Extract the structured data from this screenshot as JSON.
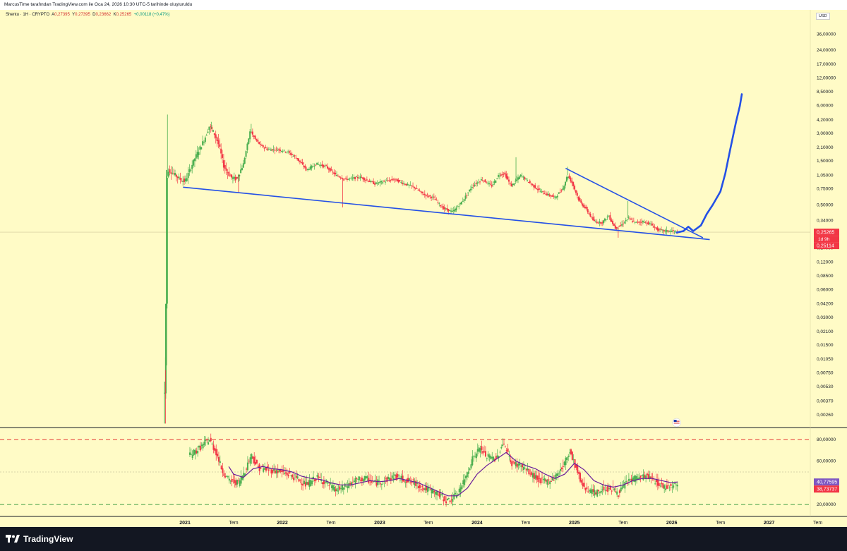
{
  "header": {
    "title": "MarcusTime tarafından TradingView.com ile Oca 24, 2026 10:30 UTC-5 tarihinde oluşturuldu"
  },
  "legend": {
    "symbol": "Shentu · 1H · CRYPTO",
    "open_label": "A",
    "open": "0,27395",
    "high_label": "Y",
    "high": "0,27395",
    "low_label": "D",
    "low": "0,23662",
    "close_label": "K",
    "close": "0,25265",
    "change": "+0,00118 (+0,47%)"
  },
  "currency": "USD",
  "footer": {
    "brand": "TradingView"
  },
  "colors": {
    "background": "#fffbc6",
    "up": "#4caf50",
    "down": "#f23645",
    "trendline": "#2450e6",
    "rsi_line": "#6a1b9a",
    "price_badge": "#f23645",
    "rsi_badge": "#7e57c2",
    "upper_band": "#e53935",
    "lower_band": "#43a047"
  },
  "chart_data": [
    {
      "type": "candlestick",
      "scale": "log",
      "ylim": [
        0.0019,
        48
      ],
      "ytick_labels": [
        "36,00000",
        "24,00000",
        "17,00000",
        "12,00000",
        "8,50000",
        "6,00000",
        "4,20000",
        "3,00000",
        "2,10000",
        "1,50000",
        "1,05000",
        "0,75000",
        "0,50000",
        "0,34000",
        "0,17000",
        "0,12000",
        "0,08500",
        "0,06000",
        "0,04200",
        "0,03000",
        "0,02100",
        "0,01500",
        "0,01050",
        "0,00750",
        "0,00530",
        "0,00370",
        "0,00260"
      ],
      "ytick_values": [
        36,
        24,
        17,
        12,
        8.5,
        6,
        4.2,
        3,
        2.1,
        1.5,
        1.05,
        0.75,
        0.5,
        0.34,
        0.17,
        0.12,
        0.085,
        0.06,
        0.042,
        0.03,
        0.021,
        0.015,
        0.0105,
        0.0075,
        0.0053,
        0.0037,
        0.0026
      ],
      "xtick_labels": [
        "2021",
        "Tem",
        "2022",
        "Tem",
        "2023",
        "Tem",
        "2024",
        "Tem",
        "2025",
        "Tem",
        "2026",
        "Tem",
        "2027",
        "Tem"
      ],
      "xtick_values": [
        2021.0,
        2021.5,
        2022.0,
        2022.5,
        2023.0,
        2023.5,
        2024.0,
        2024.5,
        2025.0,
        2025.5,
        2026.0,
        2026.5,
        2027.0,
        2027.5
      ],
      "xlim": [
        2019.1,
        2027.8
      ],
      "price_path": [
        [
          2020.79,
          0.0045
        ],
        [
          2020.8,
          0.008
        ],
        [
          2020.81,
          0.9
        ],
        [
          2020.83,
          1.2
        ],
        [
          2020.88,
          1.1
        ],
        [
          2020.95,
          0.95
        ],
        [
          2021.0,
          0.9
        ],
        [
          2021.1,
          1.6
        ],
        [
          2021.2,
          2.6
        ],
        [
          2021.25,
          3.6
        ],
        [
          2021.3,
          3.0
        ],
        [
          2021.35,
          2.2
        ],
        [
          2021.4,
          1.3
        ],
        [
          2021.47,
          1.0
        ],
        [
          2021.53,
          0.95
        ],
        [
          2021.6,
          1.4
        ],
        [
          2021.67,
          3.2
        ],
        [
          2021.72,
          2.6
        ],
        [
          2021.78,
          2.2
        ],
        [
          2021.85,
          2.0
        ],
        [
          2021.95,
          2.0
        ],
        [
          2022.05,
          1.9
        ],
        [
          2022.15,
          1.6
        ],
        [
          2022.25,
          1.2
        ],
        [
          2022.35,
          1.4
        ],
        [
          2022.45,
          1.3
        ],
        [
          2022.55,
          1.05
        ],
        [
          2022.65,
          0.95
        ],
        [
          2022.8,
          1.0
        ],
        [
          2022.95,
          0.85
        ],
        [
          2023.05,
          0.9
        ],
        [
          2023.15,
          0.95
        ],
        [
          2023.25,
          0.85
        ],
        [
          2023.35,
          0.78
        ],
        [
          2023.45,
          0.65
        ],
        [
          2023.55,
          0.6
        ],
        [
          2023.65,
          0.46
        ],
        [
          2023.75,
          0.42
        ],
        [
          2023.85,
          0.55
        ],
        [
          2023.95,
          0.8
        ],
        [
          2024.05,
          0.95
        ],
        [
          2024.15,
          0.8
        ],
        [
          2024.22,
          1.05
        ],
        [
          2024.28,
          1.1
        ],
        [
          2024.35,
          0.8
        ],
        [
          2024.45,
          1.05
        ],
        [
          2024.55,
          0.85
        ],
        [
          2024.65,
          0.7
        ],
        [
          2024.72,
          0.65
        ],
        [
          2024.8,
          0.6
        ],
        [
          2024.88,
          0.75
        ],
        [
          2024.93,
          1.05
        ],
        [
          2024.98,
          0.85
        ],
        [
          2025.05,
          0.55
        ],
        [
          2025.12,
          0.45
        ],
        [
          2025.2,
          0.33
        ],
        [
          2025.28,
          0.32
        ],
        [
          2025.35,
          0.38
        ],
        [
          2025.42,
          0.28
        ],
        [
          2025.48,
          0.3
        ],
        [
          2025.55,
          0.36
        ],
        [
          2025.62,
          0.32
        ],
        [
          2025.7,
          0.33
        ],
        [
          2025.78,
          0.31
        ],
        [
          2025.85,
          0.27
        ],
        [
          2025.92,
          0.26
        ],
        [
          2026.0,
          0.26
        ],
        [
          2026.06,
          0.25265
        ]
      ],
      "wick_highs": [
        [
          2020.82,
          4.8
        ],
        [
          2021.27,
          4.0
        ],
        [
          2021.68,
          3.8
        ],
        [
          2024.4,
          1.65
        ],
        [
          2024.93,
          1.3
        ],
        [
          2025.55,
          0.55
        ]
      ],
      "wick_lows": [
        [
          2020.8,
          0.0021
        ],
        [
          2021.55,
          0.68
        ],
        [
          2022.62,
          0.47
        ],
        [
          2025.45,
          0.22
        ]
      ],
      "current_price": 0.25265,
      "price_label": "0,25265",
      "countdown_label": "1d 9h",
      "line_label": "0,25114",
      "line_value": 0.25114,
      "trendlines": [
        {
          "name": "lower-support",
          "points": [
            [
              2020.98,
              0.78
            ],
            [
              2026.39,
              0.21
            ]
          ]
        },
        {
          "name": "upper-resistance",
          "points": [
            [
              2024.91,
              1.25
            ],
            [
              2026.32,
              0.22
            ]
          ]
        }
      ],
      "projection": [
        [
          2026.05,
          0.25
        ],
        [
          2026.12,
          0.26
        ],
        [
          2026.17,
          0.29
        ],
        [
          2026.22,
          0.26
        ],
        [
          2026.3,
          0.3
        ],
        [
          2026.36,
          0.4
        ],
        [
          2026.42,
          0.5
        ],
        [
          2026.5,
          0.7
        ],
        [
          2026.55,
          1.1
        ],
        [
          2026.6,
          2.0
        ],
        [
          2026.66,
          4.0
        ],
        [
          2026.7,
          6.0
        ],
        [
          2026.72,
          8.0
        ]
      ]
    },
    {
      "type": "line",
      "name": "RSI",
      "ylim": [
        9,
        91
      ],
      "ytick_labels": [
        "80,00000",
        "60,00000",
        "20,00000"
      ],
      "ytick_values": [
        80,
        60,
        20
      ],
      "upper_band": 80,
      "lower_band": 20,
      "mid_level": 50,
      "rsi_path": [
        [
          2021.05,
          65
        ],
        [
          2021.15,
          72
        ],
        [
          2021.25,
          80
        ],
        [
          2021.32,
          68
        ],
        [
          2021.38,
          52
        ],
        [
          2021.45,
          42
        ],
        [
          2021.55,
          40
        ],
        [
          2021.62,
          52
        ],
        [
          2021.68,
          66
        ],
        [
          2021.75,
          54
        ],
        [
          2021.85,
          52
        ],
        [
          2021.95,
          51
        ],
        [
          2022.05,
          48
        ],
        [
          2022.15,
          44
        ],
        [
          2022.25,
          38
        ],
        [
          2022.35,
          45
        ],
        [
          2022.45,
          40
        ],
        [
          2022.55,
          33
        ],
        [
          2022.62,
          35
        ],
        [
          2022.75,
          42
        ],
        [
          2022.85,
          44
        ],
        [
          2022.95,
          40
        ],
        [
          2023.05,
          42
        ],
        [
          2023.15,
          46
        ],
        [
          2023.25,
          43
        ],
        [
          2023.35,
          40
        ],
        [
          2023.45,
          35
        ],
        [
          2023.55,
          32
        ],
        [
          2023.62,
          28
        ],
        [
          2023.7,
          23
        ],
        [
          2023.78,
          28
        ],
        [
          2023.86,
          40
        ],
        [
          2023.95,
          62
        ],
        [
          2024.03,
          72
        ],
        [
          2024.1,
          64
        ],
        [
          2024.2,
          62
        ],
        [
          2024.27,
          78
        ],
        [
          2024.35,
          58
        ],
        [
          2024.45,
          56
        ],
        [
          2024.55,
          48
        ],
        [
          2024.65,
          42
        ],
        [
          2024.72,
          41
        ],
        [
          2024.8,
          45
        ],
        [
          2024.9,
          58
        ],
        [
          2024.95,
          70
        ],
        [
          2025.0,
          58
        ],
        [
          2025.08,
          38
        ],
        [
          2025.15,
          33
        ],
        [
          2025.22,
          30
        ],
        [
          2025.3,
          35
        ],
        [
          2025.4,
          34
        ],
        [
          2025.45,
          30
        ],
        [
          2025.55,
          42
        ],
        [
          2025.65,
          45
        ],
        [
          2025.75,
          46
        ],
        [
          2025.85,
          40
        ],
        [
          2025.92,
          36
        ],
        [
          2026.0,
          38
        ],
        [
          2026.06,
          38.7
        ]
      ],
      "ma_path": [
        [
          2021.45,
          55
        ],
        [
          2021.5,
          48
        ],
        [
          2021.6,
          45
        ],
        [
          2021.7,
          53
        ],
        [
          2021.8,
          55
        ],
        [
          2021.9,
          53
        ],
        [
          2022.0,
          52
        ],
        [
          2022.1,
          50
        ],
        [
          2022.2,
          46
        ],
        [
          2022.3,
          44
        ],
        [
          2022.4,
          43
        ],
        [
          2022.5,
          40
        ],
        [
          2022.6,
          38
        ],
        [
          2022.7,
          38
        ],
        [
          2022.8,
          40
        ],
        [
          2022.9,
          42
        ],
        [
          2023.0,
          41
        ],
        [
          2023.1,
          42
        ],
        [
          2023.2,
          44
        ],
        [
          2023.3,
          42
        ],
        [
          2023.4,
          40
        ],
        [
          2023.5,
          36
        ],
        [
          2023.6,
          32
        ],
        [
          2023.7,
          28
        ],
        [
          2023.8,
          28
        ],
        [
          2023.9,
          35
        ],
        [
          2024.0,
          48
        ],
        [
          2024.1,
          56
        ],
        [
          2024.2,
          62
        ],
        [
          2024.3,
          68
        ],
        [
          2024.4,
          60
        ],
        [
          2024.5,
          56
        ],
        [
          2024.6,
          53
        ],
        [
          2024.7,
          48
        ],
        [
          2024.8,
          44
        ],
        [
          2024.9,
          48
        ],
        [
          2025.0,
          58
        ],
        [
          2025.1,
          52
        ],
        [
          2025.2,
          42
        ],
        [
          2025.3,
          38
        ],
        [
          2025.4,
          36
        ],
        [
          2025.5,
          38
        ],
        [
          2025.6,
          42
        ],
        [
          2025.7,
          44
        ],
        [
          2025.8,
          44
        ],
        [
          2025.9,
          42
        ],
        [
          2026.0,
          40
        ],
        [
          2026.06,
          40.8
        ]
      ],
      "rsi_value": 38.73737,
      "ma_value": 40.77595,
      "rsi_label": "38,73737",
      "ma_label": "40,77595"
    }
  ]
}
